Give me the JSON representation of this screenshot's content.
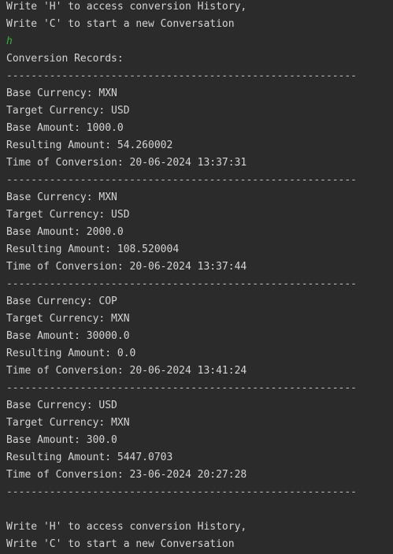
{
  "console": {
    "lines": [
      {
        "kind": "text",
        "text": "Write 'H' to access conversion History,"
      },
      {
        "kind": "text",
        "text": "Write 'C' to start a new Conversation"
      },
      {
        "kind": "input",
        "text": "h"
      },
      {
        "kind": "text",
        "text": "Conversion Records:"
      },
      {
        "kind": "separator",
        "text": "---------------------------------------------------------"
      },
      {
        "kind": "text",
        "text": "Base Currency: MXN"
      },
      {
        "kind": "text",
        "text": "Target Currency: USD"
      },
      {
        "kind": "text",
        "text": "Base Amount: 1000.0"
      },
      {
        "kind": "text",
        "text": "Resulting Amount: 54.260002"
      },
      {
        "kind": "text",
        "text": "Time of Conversion: 20-06-2024 13:37:31"
      },
      {
        "kind": "separator",
        "text": "---------------------------------------------------------"
      },
      {
        "kind": "text",
        "text": "Base Currency: MXN"
      },
      {
        "kind": "text",
        "text": "Target Currency: USD"
      },
      {
        "kind": "text",
        "text": "Base Amount: 2000.0"
      },
      {
        "kind": "text",
        "text": "Resulting Amount: 108.520004"
      },
      {
        "kind": "text",
        "text": "Time of Conversion: 20-06-2024 13:37:44"
      },
      {
        "kind": "separator",
        "text": "---------------------------------------------------------"
      },
      {
        "kind": "text",
        "text": "Base Currency: COP"
      },
      {
        "kind": "text",
        "text": "Target Currency: MXN"
      },
      {
        "kind": "text",
        "text": "Base Amount: 30000.0"
      },
      {
        "kind": "text",
        "text": "Resulting Amount: 0.0"
      },
      {
        "kind": "text",
        "text": "Time of Conversion: 20-06-2024 13:41:24"
      },
      {
        "kind": "separator",
        "text": "---------------------------------------------------------"
      },
      {
        "kind": "text",
        "text": "Base Currency: USD"
      },
      {
        "kind": "text",
        "text": "Target Currency: MXN"
      },
      {
        "kind": "text",
        "text": "Base Amount: 300.0"
      },
      {
        "kind": "text",
        "text": "Resulting Amount: 5447.0703"
      },
      {
        "kind": "text",
        "text": "Time of Conversion: 23-06-2024 20:27:28"
      },
      {
        "kind": "separator",
        "text": "---------------------------------------------------------"
      },
      {
        "kind": "blank",
        "text": ""
      },
      {
        "kind": "text",
        "text": "Write 'H' to access conversion History,"
      },
      {
        "kind": "text",
        "text": "Write 'C' to start a new Conversation"
      }
    ]
  },
  "colors": {
    "background": "#2b2b2b",
    "text": "#d4d4d4",
    "user_input": "#3fae3f",
    "separator": "#bcbcbc"
  }
}
